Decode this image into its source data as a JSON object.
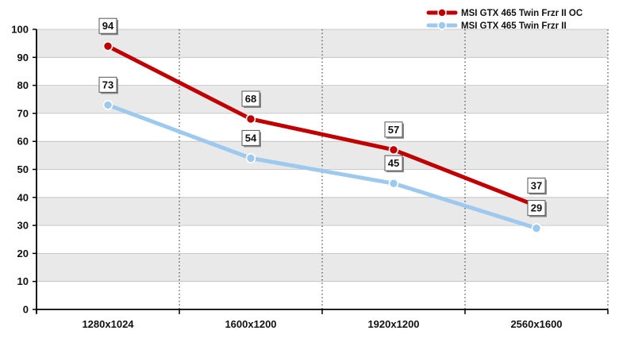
{
  "chart_data": {
    "type": "line",
    "categories": [
      "1280x1024",
      "1600x1200",
      "1920x1200",
      "2560x1600"
    ],
    "series": [
      {
        "name": "MSI GTX 465 Twin Frzr II OC",
        "values": [
          94,
          68,
          57,
          37
        ],
        "color": "#c00000"
      },
      {
        "name": "MSI GTX 465 Twin Frzr II",
        "values": [
          73,
          54,
          45,
          29
        ],
        "color": "#9ec9ee"
      }
    ],
    "ylim": [
      0,
      100
    ],
    "yticks": [
      0,
      10,
      20,
      30,
      40,
      50,
      60,
      70,
      80,
      90,
      100
    ],
    "grid": "alternating-bands",
    "legend_position": "top-right"
  }
}
